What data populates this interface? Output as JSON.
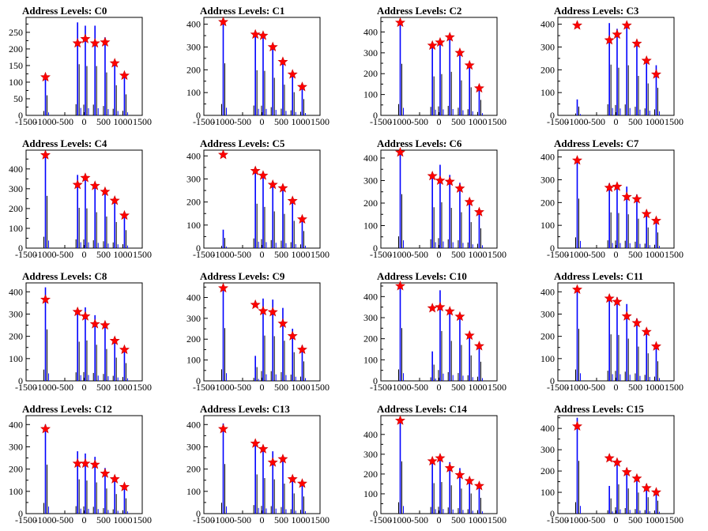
{
  "colors": {
    "hist": "#0000ff",
    "marker": "#ff0000",
    "axis": "#000000"
  },
  "chart_data": [
    {
      "type": "bar",
      "title": "Address Levels: C0",
      "ylim": [
        0,
        295
      ],
      "yticks": [
        0,
        50,
        100,
        150,
        200,
        250
      ],
      "xticks": [
        -1500,
        -1000,
        -500,
        0,
        500,
        1000,
        1500
      ],
      "x": [
        -1000,
        -170,
        30,
        280,
        540,
        790,
        1040
      ],
      "peaks": [
        110,
        280,
        270,
        270,
        235,
        165,
        115
      ],
      "markers": [
        115,
        217,
        230,
        217,
        220,
        157,
        120
      ]
    },
    {
      "type": "bar",
      "title": "Address Levels: C1",
      "ylim": [
        0,
        430
      ],
      "yticks": [
        0,
        100,
        200,
        300,
        400
      ],
      "xticks": [
        -1500,
        -1000,
        -500,
        0,
        500,
        1000,
        1500
      ],
      "x": [
        -1000,
        -170,
        30,
        280,
        540,
        790,
        1040
      ],
      "peaks": [
        415,
        360,
        355,
        300,
        245,
        185,
        130
      ],
      "markers": [
        410,
        355,
        350,
        300,
        235,
        180,
        125
      ]
    },
    {
      "type": "bar",
      "title": "Address Levels: C2",
      "ylim": [
        0,
        470
      ],
      "yticks": [
        0,
        100,
        200,
        300,
        400
      ],
      "xticks": [
        -1500,
        -1000,
        -500,
        0,
        500,
        1000,
        1500
      ],
      "x": [
        -1000,
        -170,
        30,
        280,
        540,
        790,
        1040
      ],
      "peaks": [
        450,
        340,
        360,
        380,
        305,
        245,
        135
      ],
      "markers": [
        445,
        335,
        350,
        375,
        300,
        240,
        130
      ]
    },
    {
      "type": "bar",
      "title": "Address Levels: C3",
      "ylim": [
        0,
        430
      ],
      "yticks": [
        0,
        100,
        200,
        300,
        400
      ],
      "xticks": [
        -1500,
        -1000,
        -500,
        0,
        500,
        1000,
        1500
      ],
      "x": [
        -1000,
        -170,
        30,
        280,
        540,
        790,
        1040
      ],
      "peaks": [
        70,
        405,
        380,
        400,
        315,
        255,
        220
      ],
      "markers": [
        395,
        330,
        355,
        395,
        315,
        240,
        180
      ]
    },
    {
      "type": "bar",
      "title": "Address Levels: C4",
      "ylim": [
        0,
        495
      ],
      "yticks": [
        0,
        100,
        200,
        300,
        400
      ],
      "xticks": [
        -1500,
        -1000,
        -500,
        0,
        500,
        1000,
        1500
      ],
      "x": [
        -1000,
        -170,
        30,
        280,
        540,
        790,
        1040
      ],
      "peaks": [
        480,
        370,
        365,
        330,
        290,
        240,
        165
      ],
      "markers": [
        470,
        320,
        355,
        315,
        285,
        240,
        165
      ]
    },
    {
      "type": "bar",
      "title": "Address Levels: C5",
      "ylim": [
        0,
        425
      ],
      "yticks": [
        0,
        100,
        200,
        300,
        400
      ],
      "xticks": [
        -1500,
        -1000,
        -500,
        0,
        500,
        1000,
        1500
      ],
      "x": [
        -1000,
        -170,
        30,
        280,
        540,
        790,
        1040
      ],
      "peaks": [
        80,
        350,
        325,
        290,
        270,
        215,
        135
      ],
      "markers": [
        405,
        335,
        315,
        275,
        260,
        205,
        125
      ]
    },
    {
      "type": "bar",
      "title": "Address Levels: C6",
      "ylim": [
        0,
        435
      ],
      "yticks": [
        0,
        100,
        200,
        300,
        400
      ],
      "xticks": [
        -1500,
        -1000,
        -500,
        0,
        500,
        1000,
        1500
      ],
      "x": [
        -1000,
        -170,
        30,
        280,
        540,
        790,
        1040
      ],
      "peaks": [
        435,
        330,
        370,
        325,
        290,
        210,
        160
      ],
      "markers": [
        425,
        320,
        300,
        295,
        265,
        205,
        160
      ]
    },
    {
      "type": "bar",
      "title": "Address Levels: C7",
      "ylim": [
        0,
        430
      ],
      "yticks": [
        0,
        100,
        200,
        300,
        400
      ],
      "xticks": [
        -1500,
        -1000,
        -500,
        0,
        500,
        1000,
        1500
      ],
      "x": [
        -1000,
        -170,
        30,
        280,
        540,
        790,
        1040
      ],
      "peaks": [
        395,
        285,
        280,
        270,
        235,
        165,
        125
      ],
      "markers": [
        385,
        265,
        270,
        225,
        215,
        150,
        120
      ]
    },
    {
      "type": "bar",
      "title": "Address Levels: C8",
      "ylim": [
        0,
        440
      ],
      "yticks": [
        0,
        100,
        200,
        300,
        400
      ],
      "xticks": [
        -1500,
        -1000,
        -500,
        0,
        500,
        1000,
        1500
      ],
      "x": [
        -1000,
        -170,
        30,
        280,
        540,
        790,
        1040
      ],
      "peaks": [
        420,
        320,
        330,
        295,
        260,
        190,
        145
      ],
      "markers": [
        365,
        310,
        290,
        255,
        250,
        180,
        140
      ]
    },
    {
      "type": "bar",
      "title": "Address Levels: C9",
      "ylim": [
        0,
        470
      ],
      "yticks": [
        0,
        100,
        200,
        300,
        400
      ],
      "xticks": [
        -1500,
        -1000,
        -500,
        0,
        500,
        1000,
        1500
      ],
      "x": [
        -1000,
        -170,
        30,
        280,
        540,
        790,
        1040
      ],
      "peaks": [
        460,
        120,
        395,
        390,
        350,
        250,
        170
      ],
      "markers": [
        445,
        365,
        335,
        330,
        275,
        215,
        150
      ]
    },
    {
      "type": "bar",
      "title": "Address Levels: C10",
      "ylim": [
        0,
        465
      ],
      "yticks": [
        0,
        100,
        200,
        300,
        400
      ],
      "xticks": [
        -1500,
        -1000,
        -500,
        0,
        500,
        1000,
        1500
      ],
      "x": [
        -1000,
        -170,
        30,
        280,
        540,
        790,
        1040
      ],
      "peaks": [
        455,
        140,
        430,
        345,
        310,
        220,
        165
      ],
      "markers": [
        450,
        345,
        350,
        330,
        305,
        215,
        165
      ]
    },
    {
      "type": "bar",
      "title": "Address Levels: C11",
      "ylim": [
        0,
        440
      ],
      "yticks": [
        0,
        100,
        200,
        300,
        400
      ],
      "xticks": [
        -1500,
        -1000,
        -500,
        0,
        500,
        1000,
        1500
      ],
      "x": [
        -1000,
        -170,
        30,
        280,
        540,
        790,
        1040
      ],
      "peaks": [
        425,
        380,
        375,
        345,
        280,
        225,
        160
      ],
      "markers": [
        410,
        370,
        355,
        290,
        260,
        220,
        155
      ]
    },
    {
      "type": "bar",
      "title": "Address Levels: C12",
      "ylim": [
        0,
        440
      ],
      "yticks": [
        0,
        100,
        200,
        300,
        400
      ],
      "xticks": [
        -1500,
        -1000,
        -500,
        0,
        500,
        1000,
        1500
      ],
      "x": [
        -1000,
        -170,
        30,
        280,
        540,
        790,
        1040
      ],
      "peaks": [
        400,
        280,
        270,
        255,
        205,
        160,
        125
      ],
      "markers": [
        380,
        225,
        225,
        220,
        180,
        155,
        120
      ]
    },
    {
      "type": "bar",
      "title": "Address Levels: C13",
      "ylim": [
        0,
        440
      ],
      "yticks": [
        0,
        100,
        200,
        300,
        400
      ],
      "xticks": [
        -1500,
        -1000,
        -500,
        0,
        500,
        1000,
        1500
      ],
      "x": [
        -1000,
        -170,
        30,
        280,
        540,
        790,
        1040
      ],
      "peaks": [
        405,
        320,
        290,
        280,
        245,
        165,
        140
      ],
      "markers": [
        380,
        315,
        290,
        230,
        245,
        155,
        135
      ]
    },
    {
      "type": "bar",
      "title": "Address Levels: C14",
      "ylim": [
        0,
        495
      ],
      "yticks": [
        0,
        100,
        200,
        300,
        400
      ],
      "xticks": [
        -1500,
        -1000,
        -500,
        0,
        500,
        1000,
        1500
      ],
      "x": [
        -1000,
        -170,
        30,
        280,
        540,
        790,
        1040
      ],
      "peaks": [
        480,
        280,
        290,
        260,
        230,
        185,
        145
      ],
      "markers": [
        470,
        265,
        280,
        230,
        195,
        165,
        140
      ]
    },
    {
      "type": "bar",
      "title": "Address Levels: C15",
      "ylim": [
        0,
        460
      ],
      "yticks": [
        0,
        100,
        200,
        300,
        400
      ],
      "xticks": [
        -1500,
        -1000,
        -500,
        0,
        500,
        1000,
        1500
      ],
      "x": [
        -1000,
        -170,
        30,
        280,
        540,
        790,
        1040
      ],
      "peaks": [
        450,
        130,
        250,
        215,
        180,
        140,
        110
      ],
      "markers": [
        410,
        260,
        240,
        195,
        165,
        120,
        100
      ]
    }
  ]
}
